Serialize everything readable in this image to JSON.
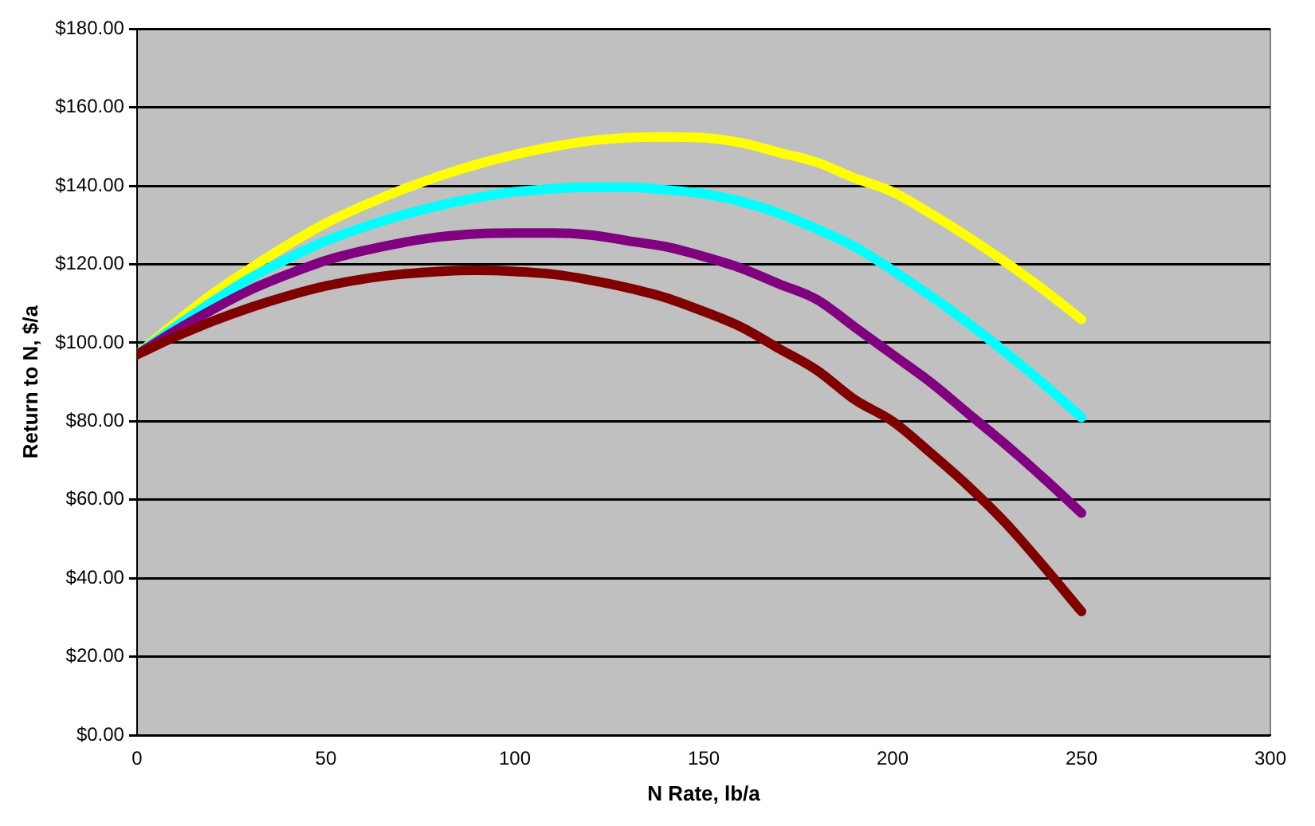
{
  "chart_data": {
    "type": "line",
    "xlabel": "N Rate, lb/a",
    "ylabel": "Return to N, $/a",
    "x": [
      0,
      10,
      20,
      30,
      40,
      50,
      60,
      70,
      80,
      90,
      100,
      110,
      120,
      130,
      140,
      150,
      160,
      170,
      180,
      190,
      200,
      210,
      220,
      230,
      240,
      250
    ],
    "series": [
      {
        "color": "#ffff00",
        "values": [
          97,
          105,
          112.5,
          119,
          125,
          130.5,
          135,
          139,
          142.5,
          145.5,
          148,
          150,
          151.5,
          152.3,
          152.5,
          152.3,
          151,
          148.5,
          146,
          142,
          138.5,
          133,
          127,
          120.5,
          113.5,
          106
        ]
      },
      {
        "color": "#00ffff",
        "values": [
          97,
          104,
          110.5,
          116.5,
          121.5,
          126,
          129.5,
          132.5,
          135,
          137,
          138.5,
          139.3,
          139.7,
          139.7,
          139,
          138,
          136,
          133,
          129,
          124.5,
          118.5,
          112,
          105,
          97.5,
          89.5,
          81
        ]
      },
      {
        "color": "#800080",
        "values": [
          97,
          103,
          108.5,
          113.5,
          117.5,
          121,
          123.5,
          125.5,
          127,
          127.8,
          128,
          128,
          127.5,
          126,
          124.5,
          122,
          119,
          115,
          111,
          104,
          97,
          90,
          82,
          74,
          65.5,
          56.6
        ]
      },
      {
        "color": "#800000",
        "values": [
          97,
          101.5,
          105.5,
          109,
          112,
          114.5,
          116.3,
          117.5,
          118.2,
          118.5,
          118.2,
          117.5,
          116,
          114,
          111.5,
          108,
          104,
          98.5,
          93,
          85.5,
          80,
          72,
          63.5,
          54,
          43,
          31.5
        ]
      }
    ],
    "xlim": [
      0,
      300
    ],
    "xticks": [
      0,
      50,
      100,
      150,
      200,
      250,
      300
    ],
    "ylim": [
      0,
      180
    ],
    "yticks": [
      {
        "value": 0,
        "label": "$0.00"
      },
      {
        "value": 20,
        "label": "$20.00"
      },
      {
        "value": 40,
        "label": "$40.00"
      },
      {
        "value": 60,
        "label": "$60.00"
      },
      {
        "value": 80,
        "label": "$80.00"
      },
      {
        "value": 100,
        "label": "$100.00"
      },
      {
        "value": 120,
        "label": "$120.00"
      },
      {
        "value": 140,
        "label": "$140.00"
      },
      {
        "value": 160,
        "label": "$160.00"
      },
      {
        "value": 180,
        "label": "$180.00"
      }
    ],
    "grid": "y",
    "legend": false,
    "marker": "none",
    "line_style": "solid"
  }
}
